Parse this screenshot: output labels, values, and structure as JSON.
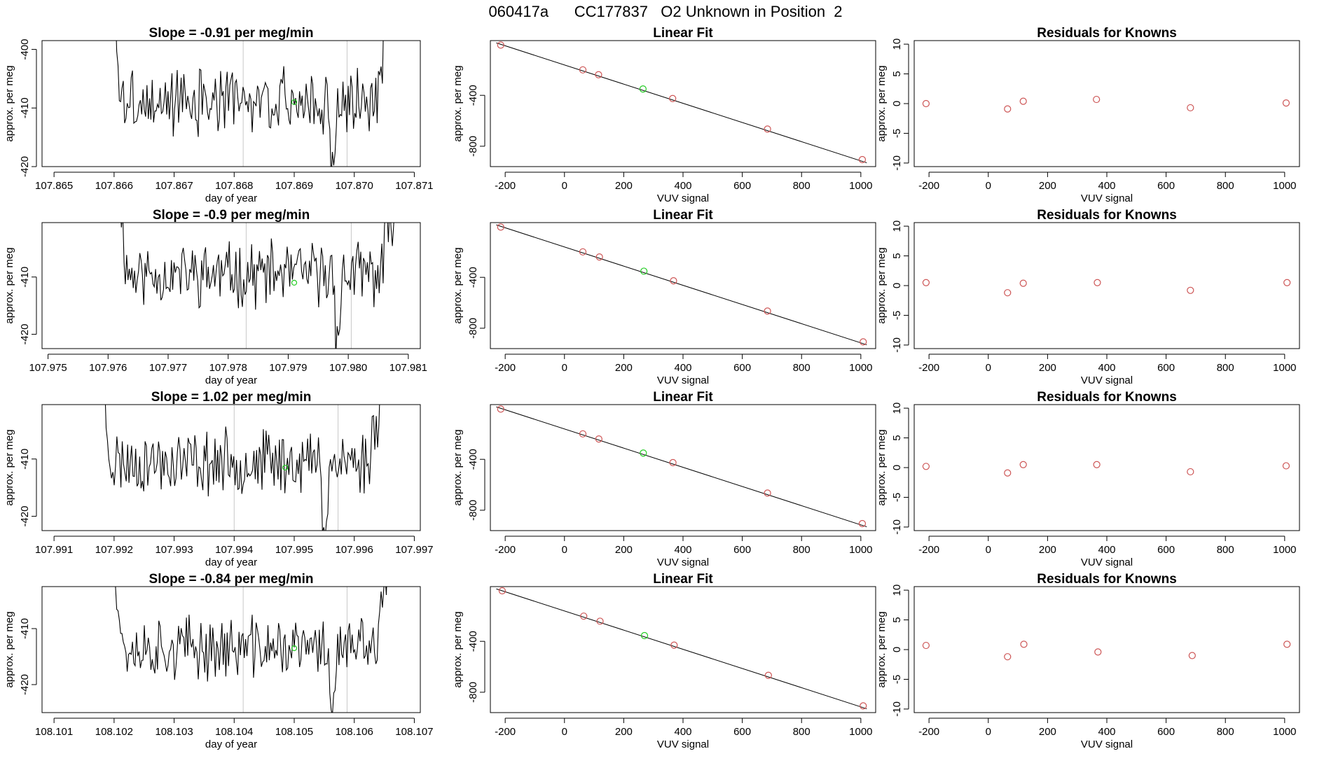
{
  "page": {
    "title": "060417a      CC177837   O2 Unknown in Position  2"
  },
  "colors": {
    "trace": "#000000",
    "known_points": "#cd5555",
    "unknown_point": "#22cc22",
    "marker_lines": "#c8c8c8",
    "frame": "#000000"
  },
  "chart_data": [
    {
      "type": "line",
      "panel": "time-series",
      "row": 1,
      "title": "Slope =  -0.91  per meg/min",
      "xlabel": "day of year",
      "ylabel": "approx. per meg",
      "xlim": [
        107.8648,
        107.8711
      ],
      "ylim": [
        -420,
        -398.5
      ],
      "xticks": [
        107.865,
        107.866,
        107.867,
        107.868,
        107.869,
        107.87,
        107.871
      ],
      "xtick_labels": [
        "107.865",
        "107.866",
        "107.867",
        "107.868",
        "107.869",
        "107.870",
        "107.871"
      ],
      "yticks": [
        -420,
        -410,
        -400
      ],
      "ytick_labels": [
        "-420",
        "-410",
        "-400"
      ],
      "marker_lines": [
        107.86815,
        107.86988
      ],
      "trace_start": 107.866,
      "trace_end": 107.8706,
      "rise_start": 5.0,
      "rise_end": 25.0,
      "trace_seed": 3,
      "trace_level": -409.0,
      "unknown_point": {
        "x": 107.869,
        "y": -409.0
      }
    },
    {
      "type": "scatter",
      "panel": "linear-fit",
      "row": 1,
      "title": "Linear Fit",
      "xlabel": "VUV signal",
      "ylabel": "approx. per meg",
      "xlim": [
        -250,
        1050
      ],
      "ylim": [
        -960,
        30
      ],
      "xticks": [
        -200,
        0,
        200,
        400,
        600,
        800,
        1000
      ],
      "xtick_labels": [
        "-200",
        "0",
        "200",
        "400",
        "600",
        "800",
        "1000"
      ],
      "yticks": [
        -800,
        -400
      ],
      "ytick_labels": [
        "-800",
        "-400"
      ],
      "fit_line": {
        "x1": -230,
        "y1": 12,
        "x2": 1020,
        "y2": -930
      },
      "known_points": [
        {
          "x": -215,
          "y": -5
        },
        {
          "x": 62,
          "y": -200
        },
        {
          "x": 115,
          "y": -238
        },
        {
          "x": 365,
          "y": -425
        },
        {
          "x": 685,
          "y": -665
        },
        {
          "x": 1005,
          "y": -905
        }
      ],
      "unknown_point": {
        "x": 265,
        "y": -350
      }
    },
    {
      "type": "scatter",
      "panel": "residuals",
      "row": 1,
      "title": "Residuals for Knowns",
      "xlabel": "VUV signal",
      "ylabel": "approx. per meg",
      "xlim": [
        -250,
        1050
      ],
      "ylim": [
        -10.6,
        10.6
      ],
      "xticks": [
        -200,
        0,
        200,
        400,
        600,
        800,
        1000
      ],
      "xtick_labels": [
        "-200",
        "0",
        "200",
        "400",
        "600",
        "800",
        "1000"
      ],
      "yticks": [
        -10,
        -5,
        0,
        5,
        10
      ],
      "ytick_labels": [
        "-10",
        "-5",
        "0",
        "5",
        "10"
      ],
      "known_points": [
        {
          "x": -210,
          "y": 0.0
        },
        {
          "x": 65,
          "y": -0.9
        },
        {
          "x": 118,
          "y": 0.4
        },
        {
          "x": 365,
          "y": 0.7
        },
        {
          "x": 682,
          "y": -0.7
        },
        {
          "x": 1005,
          "y": 0.1
        }
      ]
    },
    {
      "type": "line",
      "panel": "time-series",
      "row": 2,
      "title": "Slope =  -0.9  per meg/min",
      "xlabel": "day of year",
      "ylabel": "approx. per meg",
      "xlim": [
        107.9749,
        107.9812
      ],
      "ylim": [
        -422.5,
        -400.5
      ],
      "xticks": [
        107.975,
        107.976,
        107.977,
        107.978,
        107.979,
        107.98,
        107.981
      ],
      "xtick_labels": [
        "107.975",
        "107.976",
        "107.977",
        "107.978",
        "107.979",
        "107.980",
        "107.981"
      ],
      "yticks": [
        -420,
        -410
      ],
      "ytick_labels": [
        "-420",
        "-410"
      ],
      "marker_lines": [
        107.9783,
        107.98005
      ],
      "trace_start": 107.9762,
      "trace_end": 107.9808,
      "rise_start": 4.0,
      "rise_end": 10.0,
      "trace_seed": 11,
      "trace_level": -409.5,
      "unknown_point": {
        "x": 107.9791,
        "y": -411.0
      }
    },
    {
      "type": "scatter",
      "panel": "linear-fit",
      "row": 2,
      "title": "Linear Fit",
      "xlabel": "VUV signal",
      "ylabel": "approx. per meg",
      "xlim": [
        -250,
        1050
      ],
      "ylim": [
        -960,
        30
      ],
      "xticks": [
        -200,
        0,
        200,
        400,
        600,
        800,
        1000
      ],
      "xtick_labels": [
        "-200",
        "0",
        "200",
        "400",
        "600",
        "800",
        "1000"
      ],
      "yticks": [
        -800,
        -400
      ],
      "ytick_labels": [
        "-800",
        "-400"
      ],
      "fit_line": {
        "x1": -230,
        "y1": 12,
        "x2": 1020,
        "y2": -930
      },
      "known_points": [
        {
          "x": -215,
          "y": -5
        },
        {
          "x": 62,
          "y": -200
        },
        {
          "x": 118,
          "y": -240
        },
        {
          "x": 368,
          "y": -427
        },
        {
          "x": 685,
          "y": -665
        },
        {
          "x": 1008,
          "y": -907
        }
      ],
      "unknown_point": {
        "x": 268,
        "y": -352
      }
    },
    {
      "type": "scatter",
      "panel": "residuals",
      "row": 2,
      "title": "Residuals for Knowns",
      "xlabel": "VUV signal",
      "ylabel": "approx. per meg",
      "xlim": [
        -250,
        1050
      ],
      "ylim": [
        -10.6,
        10.6
      ],
      "xticks": [
        -200,
        0,
        200,
        400,
        600,
        800,
        1000
      ],
      "xtick_labels": [
        "-200",
        "0",
        "200",
        "400",
        "600",
        "800",
        "1000"
      ],
      "yticks": [
        -10,
        -5,
        0,
        5,
        10
      ],
      "ytick_labels": [
        "-10",
        "-5",
        "0",
        "5",
        "10"
      ],
      "known_points": [
        {
          "x": -210,
          "y": 0.5
        },
        {
          "x": 65,
          "y": -1.2
        },
        {
          "x": 118,
          "y": 0.4
        },
        {
          "x": 368,
          "y": 0.5
        },
        {
          "x": 682,
          "y": -0.8
        },
        {
          "x": 1008,
          "y": 0.5
        }
      ]
    },
    {
      "type": "line",
      "panel": "time-series",
      "row": 3,
      "title": "Slope =  1.02  per meg/min",
      "xlabel": "day of year",
      "ylabel": "approx. per meg",
      "xlim": [
        107.9908,
        107.9971
      ],
      "ylim": [
        -422.5,
        -400.5
      ],
      "xticks": [
        107.991,
        107.992,
        107.993,
        107.994,
        107.995,
        107.996,
        107.997
      ],
      "xtick_labels": [
        "107.991",
        "107.992",
        "107.993",
        "107.994",
        "107.995",
        "107.996",
        "107.997"
      ],
      "yticks": [
        -420,
        -410
      ],
      "ytick_labels": [
        "-420",
        "-410"
      ],
      "marker_lines": [
        107.994,
        107.99573
      ],
      "trace_start": 107.9918,
      "trace_end": 107.9965,
      "rise_start": 8.0,
      "rise_end": 12.0,
      "trace_seed": 23,
      "trace_level": -410.5,
      "unknown_point": {
        "x": 107.99485,
        "y": -411.5
      }
    },
    {
      "type": "scatter",
      "panel": "linear-fit",
      "row": 3,
      "title": "Linear Fit",
      "xlabel": "VUV signal",
      "ylabel": "approx. per meg",
      "xlim": [
        -250,
        1050
      ],
      "ylim": [
        -960,
        30
      ],
      "xticks": [
        -200,
        0,
        200,
        400,
        600,
        800,
        1000
      ],
      "xtick_labels": [
        "-200",
        "0",
        "200",
        "400",
        "600",
        "800",
        "1000"
      ],
      "yticks": [
        -800,
        -400
      ],
      "ytick_labels": [
        "-800",
        "-400"
      ],
      "fit_line": {
        "x1": -230,
        "y1": 12,
        "x2": 1020,
        "y2": -930
      },
      "known_points": [
        {
          "x": -215,
          "y": -5
        },
        {
          "x": 62,
          "y": -200
        },
        {
          "x": 116,
          "y": -240
        },
        {
          "x": 366,
          "y": -426
        },
        {
          "x": 685,
          "y": -665
        },
        {
          "x": 1005,
          "y": -905
        }
      ],
      "unknown_point": {
        "x": 266,
        "y": -351
      }
    },
    {
      "type": "scatter",
      "panel": "residuals",
      "row": 3,
      "title": "Residuals for Knowns",
      "xlabel": "VUV signal",
      "ylabel": "approx. per meg",
      "xlim": [
        -250,
        1050
      ],
      "ylim": [
        -10.6,
        10.6
      ],
      "xticks": [
        -200,
        0,
        200,
        400,
        600,
        800,
        1000
      ],
      "xtick_labels": [
        "-200",
        "0",
        "200",
        "400",
        "600",
        "800",
        "1000"
      ],
      "yticks": [
        -10,
        -5,
        0,
        5,
        10
      ],
      "ytick_labels": [
        "-10",
        "-5",
        "0",
        "5",
        "10"
      ],
      "known_points": [
        {
          "x": -210,
          "y": 0.2
        },
        {
          "x": 65,
          "y": -0.9
        },
        {
          "x": 118,
          "y": 0.5
        },
        {
          "x": 366,
          "y": 0.5
        },
        {
          "x": 682,
          "y": -0.7
        },
        {
          "x": 1005,
          "y": 0.3
        }
      ]
    },
    {
      "type": "line",
      "panel": "time-series",
      "row": 4,
      "title": "Slope =  -0.84  per meg/min",
      "xlabel": "day of year",
      "ylabel": "approx. per meg",
      "xlim": [
        108.1008,
        108.1071
      ],
      "ylim": [
        -425,
        -402.5
      ],
      "xticks": [
        108.101,
        108.102,
        108.103,
        108.104,
        108.105,
        108.106,
        108.107
      ],
      "xtick_labels": [
        "108.101",
        "108.102",
        "108.103",
        "108.104",
        "108.105",
        "108.106",
        "108.107"
      ],
      "yticks": [
        -420,
        -410
      ],
      "ytick_labels": [
        "-420",
        "-410"
      ],
      "marker_lines": [
        108.10415,
        108.10588
      ],
      "trace_start": 108.102,
      "trace_end": 108.1066,
      "rise_start": 10.0,
      "rise_end": 14.0,
      "trace_seed": 37,
      "trace_level": -413.5,
      "unknown_point": {
        "x": 108.105,
        "y": -413.5
      }
    },
    {
      "type": "scatter",
      "panel": "linear-fit",
      "row": 4,
      "title": "Linear Fit",
      "xlabel": "VUV signal",
      "ylabel": "approx. per meg",
      "xlim": [
        -250,
        1050
      ],
      "ylim": [
        -960,
        30
      ],
      "xticks": [
        -200,
        0,
        200,
        400,
        600,
        800,
        1000
      ],
      "xtick_labels": [
        "-200",
        "0",
        "200",
        "400",
        "600",
        "800",
        "1000"
      ],
      "yticks": [
        -800,
        -400
      ],
      "ytick_labels": [
        "-800",
        "-400"
      ],
      "fit_line": {
        "x1": -230,
        "y1": 12,
        "x2": 1020,
        "y2": -930
      },
      "known_points": [
        {
          "x": -210,
          "y": -3
        },
        {
          "x": 65,
          "y": -202
        },
        {
          "x": 120,
          "y": -242
        },
        {
          "x": 370,
          "y": -430
        },
        {
          "x": 688,
          "y": -667
        },
        {
          "x": 1008,
          "y": -907
        }
      ],
      "unknown_point": {
        "x": 270,
        "y": -355
      }
    },
    {
      "type": "scatter",
      "panel": "residuals",
      "row": 4,
      "title": "Residuals for Knowns",
      "xlabel": "VUV signal",
      "ylabel": "approx. per meg",
      "xlim": [
        -250,
        1050
      ],
      "ylim": [
        -10.6,
        10.6
      ],
      "xticks": [
        -200,
        0,
        200,
        400,
        600,
        800,
        1000
      ],
      "xtick_labels": [
        "-200",
        "0",
        "200",
        "400",
        "600",
        "800",
        "1000"
      ],
      "yticks": [
        -10,
        -5,
        0,
        5,
        10
      ],
      "ytick_labels": [
        "-10",
        "-5",
        "0",
        "5",
        "10"
      ],
      "known_points": [
        {
          "x": -210,
          "y": 0.7
        },
        {
          "x": 65,
          "y": -1.2
        },
        {
          "x": 120,
          "y": 0.9
        },
        {
          "x": 370,
          "y": -0.4
        },
        {
          "x": 688,
          "y": -1.0
        },
        {
          "x": 1008,
          "y": 0.9
        }
      ]
    }
  ]
}
